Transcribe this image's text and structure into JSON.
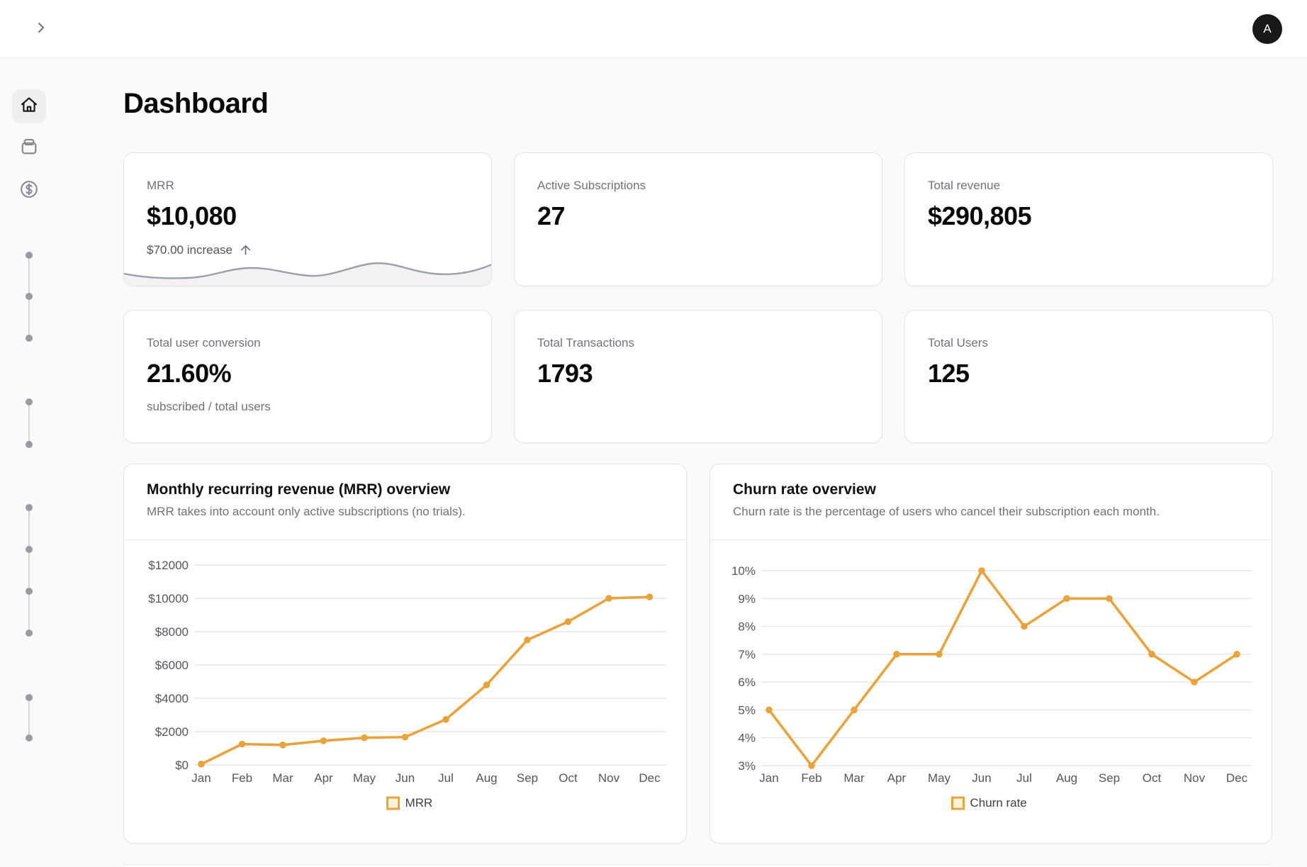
{
  "topbar": {
    "avatar_initial": "A",
    "icons": [
      "chevron-right-icon",
      "avatar"
    ]
  },
  "sidebar": {
    "icons": [
      "home-icon",
      "wallet-icon",
      "dollar-circle-icon"
    ],
    "timeline_groups": [
      3,
      2,
      4,
      2
    ]
  },
  "page": {
    "title": "Dashboard"
  },
  "stats": [
    {
      "label": "MRR",
      "value": "$10,080",
      "delta": "$70.00 increase",
      "delta_icon": "arrow-up-icon"
    },
    {
      "label": "Active Subscriptions",
      "value": "27"
    },
    {
      "label": "Total revenue",
      "value": "$290,805"
    },
    {
      "label": "Total user conversion",
      "value": "21.60%",
      "sub_label": "subscribed / total users"
    },
    {
      "label": "Total Transactions",
      "value": "1793"
    },
    {
      "label": "Total Users",
      "value": "125"
    }
  ],
  "chart_data": [
    {
      "type": "line",
      "title": "Monthly recurring revenue (MRR) overview",
      "subtitle": "MRR takes into account only active subscriptions (no trials).",
      "categories": [
        "Jan",
        "Feb",
        "Mar",
        "Apr",
        "May",
        "Jun",
        "Jul",
        "Aug",
        "Sep",
        "Oct",
        "Nov",
        "Dec"
      ],
      "series": [
        {
          "name": "MRR",
          "values": [
            50,
            1250,
            1200,
            1450,
            1630,
            1670,
            2730,
            4800,
            7500,
            8600,
            10000,
            10080
          ]
        }
      ],
      "ylim": [
        0,
        12000
      ],
      "ytick_values": [
        0,
        2000,
        4000,
        6000,
        8000,
        10000,
        12000
      ],
      "ytick_labels": [
        "$0",
        "$2000",
        "$4000",
        "$6000",
        "$8000",
        "$10000",
        "$12000"
      ],
      "legend": "MRR",
      "legend_position": "bottom",
      "grid": true,
      "line_color": "#E8A33D",
      "legend_fill": "#FDF3DC"
    },
    {
      "type": "line",
      "title": "Churn rate overview",
      "subtitle": "Churn rate is the percentage of users who cancel their subscription each month.",
      "categories": [
        "Jan",
        "Feb",
        "Mar",
        "Apr",
        "May",
        "Jun",
        "Jul",
        "Aug",
        "Sep",
        "Oct",
        "Nov",
        "Dec"
      ],
      "series": [
        {
          "name": "Churn rate",
          "values": [
            5,
            3,
            5,
            7,
            7,
            10,
            8,
            9,
            9,
            7,
            6,
            7
          ]
        }
      ],
      "ylim": [
        3,
        10
      ],
      "ytick_values": [
        3,
        4,
        5,
        6,
        7,
        8,
        9,
        10
      ],
      "ytick_labels": [
        "3%",
        "4%",
        "5%",
        "6%",
        "7%",
        "8%",
        "9%",
        "10%"
      ],
      "legend": "Churn rate",
      "legend_position": "bottom",
      "grid": true,
      "line_color": "#E8A33D",
      "legend_fill": "#FDF3DC"
    }
  ],
  "colors": {
    "accent_orange": "#E8A33D",
    "background": "#fafafa",
    "card_border": "#e5e5e8",
    "muted_text": "#71717a",
    "axis_text": "#55555e",
    "gridline": "#e6e6e9",
    "avatar_bg": "#18181b",
    "sparkline_stroke": "#9aa0a8"
  }
}
